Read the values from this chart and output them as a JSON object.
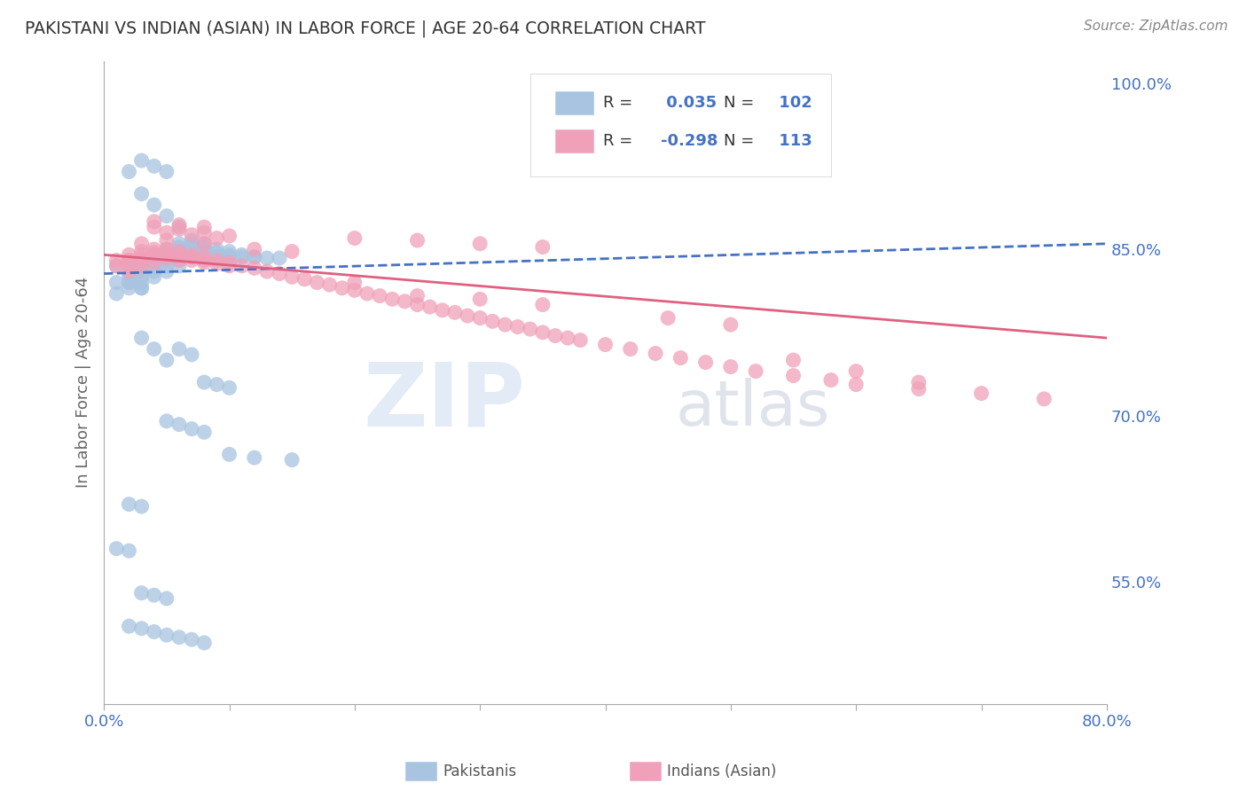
{
  "title": "PAKISTANI VS INDIAN (ASIAN) IN LABOR FORCE | AGE 20-64 CORRELATION CHART",
  "source": "Source: ZipAtlas.com",
  "ylabel": "In Labor Force | Age 20-64",
  "xlim": [
    0.0,
    0.8
  ],
  "ylim": [
    0.44,
    1.02
  ],
  "xticks": [
    0.0,
    0.1,
    0.2,
    0.3,
    0.4,
    0.5,
    0.6,
    0.7,
    0.8
  ],
  "ytick_right_labels": [
    "55.0%",
    "70.0%",
    "85.0%",
    "100.0%"
  ],
  "ytick_right_values": [
    0.55,
    0.7,
    0.85,
    1.0
  ],
  "blue_R": 0.035,
  "blue_N": 102,
  "pink_R": -0.298,
  "pink_N": 113,
  "blue_color": "#a8c4e0",
  "pink_color": "#f0a0b8",
  "blue_line_color": "#4472c4",
  "pink_line_color": "#e06080",
  "blue_scatter_x": [
    0.01,
    0.01,
    0.01,
    0.02,
    0.02,
    0.02,
    0.02,
    0.02,
    0.03,
    0.03,
    0.03,
    0.03,
    0.03,
    0.03,
    0.03,
    0.03,
    0.04,
    0.04,
    0.04,
    0.04,
    0.04,
    0.04,
    0.04,
    0.05,
    0.05,
    0.05,
    0.05,
    0.05,
    0.05,
    0.05,
    0.06,
    0.06,
    0.06,
    0.06,
    0.06,
    0.06,
    0.06,
    0.07,
    0.07,
    0.07,
    0.07,
    0.07,
    0.07,
    0.08,
    0.08,
    0.08,
    0.08,
    0.08,
    0.09,
    0.09,
    0.09,
    0.1,
    0.1,
    0.1,
    0.11,
    0.11,
    0.12,
    0.12,
    0.13,
    0.14,
    0.02,
    0.03,
    0.04,
    0.05,
    0.06,
    0.03,
    0.04,
    0.05,
    0.03,
    0.04,
    0.05,
    0.02,
    0.03,
    0.06,
    0.07,
    0.08,
    0.09,
    0.1,
    0.05,
    0.06,
    0.07,
    0.08,
    0.1,
    0.12,
    0.15,
    0.02,
    0.03,
    0.01,
    0.02,
    0.03,
    0.04,
    0.05,
    0.02,
    0.03,
    0.04,
    0.05,
    0.06,
    0.07,
    0.08
  ],
  "blue_scatter_y": [
    0.835,
    0.82,
    0.81,
    0.84,
    0.835,
    0.825,
    0.82,
    0.815,
    0.84,
    0.838,
    0.835,
    0.833,
    0.83,
    0.825,
    0.82,
    0.815,
    0.845,
    0.843,
    0.84,
    0.837,
    0.835,
    0.83,
    0.825,
    0.85,
    0.847,
    0.845,
    0.843,
    0.84,
    0.835,
    0.83,
    0.855,
    0.852,
    0.85,
    0.847,
    0.845,
    0.84,
    0.835,
    0.858,
    0.855,
    0.852,
    0.85,
    0.847,
    0.843,
    0.855,
    0.852,
    0.85,
    0.847,
    0.843,
    0.85,
    0.847,
    0.843,
    0.848,
    0.845,
    0.843,
    0.845,
    0.843,
    0.843,
    0.843,
    0.842,
    0.842,
    0.92,
    0.9,
    0.89,
    0.88,
    0.87,
    0.93,
    0.925,
    0.92,
    0.77,
    0.76,
    0.75,
    0.82,
    0.815,
    0.76,
    0.755,
    0.73,
    0.728,
    0.725,
    0.695,
    0.692,
    0.688,
    0.685,
    0.665,
    0.662,
    0.66,
    0.62,
    0.618,
    0.58,
    0.578,
    0.54,
    0.538,
    0.535,
    0.51,
    0.508,
    0.505,
    0.502,
    0.5,
    0.498,
    0.495
  ],
  "pink_scatter_x": [
    0.01,
    0.01,
    0.02,
    0.02,
    0.02,
    0.02,
    0.03,
    0.03,
    0.03,
    0.03,
    0.03,
    0.04,
    0.04,
    0.04,
    0.04,
    0.04,
    0.05,
    0.05,
    0.05,
    0.05,
    0.06,
    0.06,
    0.06,
    0.06,
    0.07,
    0.07,
    0.07,
    0.08,
    0.08,
    0.08,
    0.09,
    0.09,
    0.1,
    0.1,
    0.11,
    0.12,
    0.13,
    0.14,
    0.15,
    0.16,
    0.17,
    0.18,
    0.19,
    0.2,
    0.21,
    0.22,
    0.23,
    0.24,
    0.25,
    0.26,
    0.27,
    0.28,
    0.29,
    0.3,
    0.31,
    0.32,
    0.33,
    0.34,
    0.35,
    0.36,
    0.37,
    0.38,
    0.4,
    0.42,
    0.44,
    0.46,
    0.48,
    0.5,
    0.52,
    0.55,
    0.58,
    0.6,
    0.65,
    0.03,
    0.05,
    0.08,
    0.12,
    0.15,
    0.2,
    0.25,
    0.3,
    0.35,
    0.04,
    0.06,
    0.08,
    0.1,
    0.04,
    0.06,
    0.08,
    0.05,
    0.07,
    0.09,
    0.25,
    0.3,
    0.2,
    0.35,
    0.45,
    0.5,
    0.7,
    0.75,
    0.55,
    0.6,
    0.65
  ],
  "pink_scatter_y": [
    0.84,
    0.835,
    0.845,
    0.84,
    0.835,
    0.83,
    0.848,
    0.845,
    0.842,
    0.84,
    0.835,
    0.85,
    0.847,
    0.845,
    0.843,
    0.838,
    0.85,
    0.847,
    0.845,
    0.842,
    0.848,
    0.845,
    0.843,
    0.84,
    0.845,
    0.843,
    0.84,
    0.843,
    0.84,
    0.838,
    0.84,
    0.837,
    0.838,
    0.835,
    0.835,
    0.833,
    0.83,
    0.828,
    0.825,
    0.823,
    0.82,
    0.818,
    0.815,
    0.813,
    0.81,
    0.808,
    0.805,
    0.803,
    0.8,
    0.798,
    0.795,
    0.793,
    0.79,
    0.788,
    0.785,
    0.782,
    0.78,
    0.778,
    0.775,
    0.772,
    0.77,
    0.768,
    0.764,
    0.76,
    0.756,
    0.752,
    0.748,
    0.744,
    0.74,
    0.736,
    0.732,
    0.728,
    0.724,
    0.855,
    0.858,
    0.855,
    0.85,
    0.848,
    0.86,
    0.858,
    0.855,
    0.852,
    0.87,
    0.868,
    0.865,
    0.862,
    0.875,
    0.872,
    0.87,
    0.865,
    0.863,
    0.86,
    0.808,
    0.805,
    0.82,
    0.8,
    0.788,
    0.782,
    0.72,
    0.715,
    0.75,
    0.74,
    0.73
  ],
  "blue_line_x0": 0.0,
  "blue_line_x1": 0.8,
  "blue_line_y0": 0.828,
  "blue_line_y1": 0.855,
  "pink_line_x0": 0.0,
  "pink_line_x1": 0.8,
  "pink_line_y0": 0.845,
  "pink_line_y1": 0.77,
  "watermark_zip": "ZIP",
  "watermark_atlas": "atlas",
  "background_color": "#ffffff",
  "grid_color": "#cccccc",
  "title_color": "#333333",
  "axis_label_color": "#666666",
  "tick_color": "#4472c4",
  "legend_text_color": "#4472c4"
}
